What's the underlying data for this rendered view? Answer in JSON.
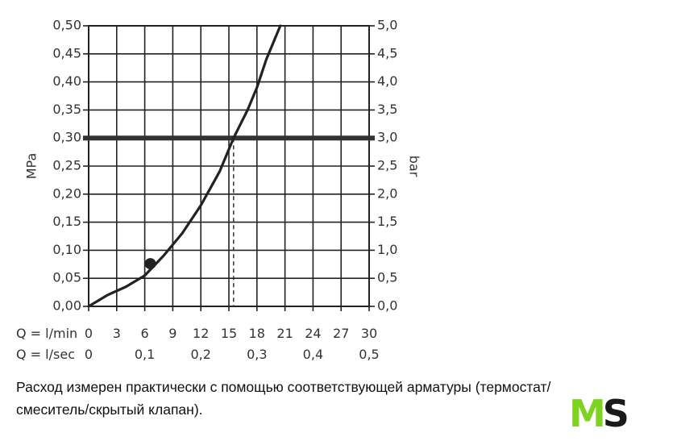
{
  "chart_data": {
    "type": "line",
    "y_left_label": "MPa",
    "y_right_label": "bar",
    "y_left_ticks": [
      "0,00",
      "0,05",
      "0,10",
      "0,15",
      "0,20",
      "0,25",
      "0,30",
      "0,35",
      "0,40",
      "0,45",
      "0,50"
    ],
    "y_right_ticks": [
      "0,0",
      "0,5",
      "1,0",
      "1,5",
      "2,0",
      "2,5",
      "3,0",
      "3,5",
      "4,0",
      "4,5",
      "5,0"
    ],
    "ylim": [
      0,
      0.5
    ],
    "xlim": [
      0,
      30
    ],
    "x_row1_label": "Q = l/min",
    "x_row1_ticks": [
      "0",
      "3",
      "6",
      "9",
      "12",
      "15",
      "18",
      "21",
      "24",
      "27",
      "30"
    ],
    "x_row2_label": "Q = l/sec",
    "x_row2_ticks": [
      "0",
      "0,1",
      "0,2",
      "0,3",
      "0,4",
      "0,5"
    ],
    "curve": {
      "x": [
        0,
        2,
        4,
        6,
        8,
        10,
        12,
        14,
        15.5,
        17,
        18,
        19,
        20,
        20.5
      ],
      "y": [
        0,
        0.02,
        0.035,
        0.055,
        0.09,
        0.13,
        0.18,
        0.24,
        0.3,
        0.35,
        0.39,
        0.44,
        0.48,
        0.5
      ]
    },
    "marker": {
      "x": 6.6,
      "y": 0.076
    },
    "reference_line_y": 0.3,
    "dashed_line_x": 15.5
  },
  "caption": {
    "line1": "Расход измерен практически с помощью соответствующей арматуры (термостат/",
    "line2": "смеситель/скрытый клапан)."
  },
  "logo": {
    "part1": "M",
    "part2": "S",
    "accent_color": "#7ed321"
  }
}
